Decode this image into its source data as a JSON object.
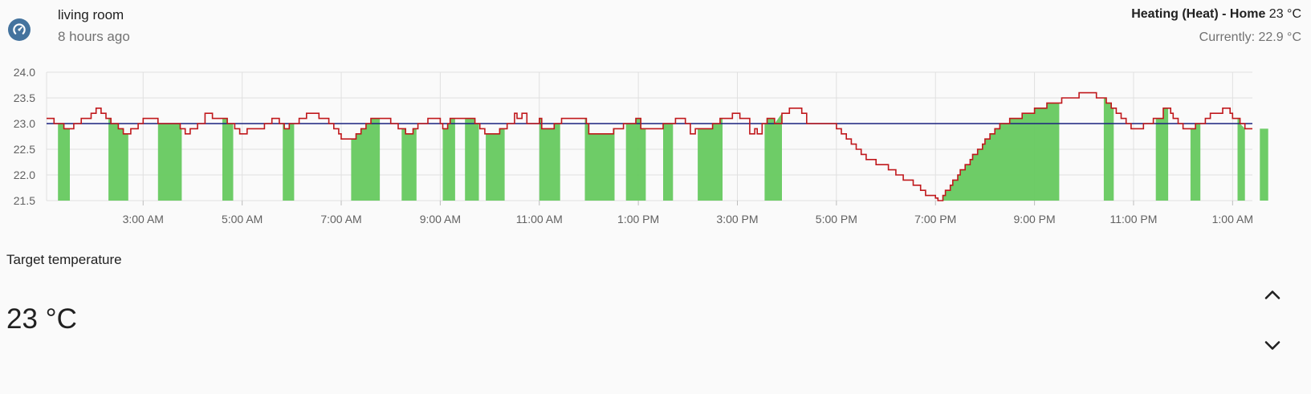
{
  "entity": {
    "icon": "thermostat-icon",
    "name": "living room",
    "last_changed": "8 hours ago"
  },
  "state": {
    "mode": "Heating (Heat) - Home",
    "target": "23 °C",
    "current": "Currently: 22.9 °C"
  },
  "colors": {
    "accent": "#44739e",
    "current_temp": "#c0181c",
    "target_temp": "#1a237e",
    "heating": "#66c95f"
  },
  "chart_data": {
    "type": "line",
    "y_ticks": [
      "24.0",
      "23.5",
      "23.0",
      "22.5",
      "22.0",
      "21.5"
    ],
    "x_ticks": [
      "3:00 AM",
      "5:00 AM",
      "7:00 AM",
      "9:00 AM",
      "11:00 AM",
      "1:00 PM",
      "3:00 PM",
      "5:00 PM",
      "7:00 PM",
      "9:00 PM",
      "11:00 PM",
      "1:00 AM"
    ],
    "ylim": [
      21.5,
      24.0
    ],
    "xlim": [
      1.05,
      25.4
    ],
    "grid": true,
    "series": [
      {
        "key": "target",
        "values": [
          [
            1.05,
            23.0
          ],
          [
            25.4,
            23.0
          ]
        ]
      },
      {
        "key": "current",
        "values": [
          [
            1.05,
            23.1
          ],
          [
            1.2,
            23.0
          ],
          [
            1.4,
            22.9
          ],
          [
            1.6,
            23.0
          ],
          [
            1.75,
            23.1
          ],
          [
            1.95,
            23.2
          ],
          [
            2.05,
            23.3
          ],
          [
            2.15,
            23.2
          ],
          [
            2.25,
            23.1
          ],
          [
            2.35,
            23.0
          ],
          [
            2.5,
            22.9
          ],
          [
            2.6,
            22.8
          ],
          [
            2.75,
            22.9
          ],
          [
            2.9,
            23.0
          ],
          [
            3.0,
            23.1
          ],
          [
            3.3,
            23.0
          ],
          [
            3.55,
            23.0
          ],
          [
            3.75,
            22.9
          ],
          [
            3.85,
            22.8
          ],
          [
            3.95,
            22.9
          ],
          [
            4.1,
            23.0
          ],
          [
            4.25,
            23.2
          ],
          [
            4.4,
            23.1
          ],
          [
            4.7,
            23.0
          ],
          [
            4.85,
            22.9
          ],
          [
            4.95,
            22.8
          ],
          [
            5.1,
            22.9
          ],
          [
            5.45,
            23.0
          ],
          [
            5.6,
            23.1
          ],
          [
            5.75,
            23.0
          ],
          [
            5.85,
            22.9
          ],
          [
            5.95,
            23.0
          ],
          [
            6.15,
            23.1
          ],
          [
            6.3,
            23.2
          ],
          [
            6.55,
            23.1
          ],
          [
            6.75,
            23.0
          ],
          [
            6.85,
            22.9
          ],
          [
            6.95,
            22.8
          ],
          [
            7.0,
            22.7
          ],
          [
            7.3,
            22.8
          ],
          [
            7.4,
            22.9
          ],
          [
            7.5,
            23.0
          ],
          [
            7.6,
            23.1
          ],
          [
            8.0,
            23.0
          ],
          [
            8.15,
            22.9
          ],
          [
            8.3,
            22.8
          ],
          [
            8.45,
            22.9
          ],
          [
            8.55,
            23.0
          ],
          [
            8.75,
            23.1
          ],
          [
            9.0,
            23.0
          ],
          [
            9.05,
            22.9
          ],
          [
            9.15,
            23.0
          ],
          [
            9.2,
            23.1
          ],
          [
            9.7,
            23.0
          ],
          [
            9.8,
            22.9
          ],
          [
            9.9,
            22.8
          ],
          [
            10.2,
            22.9
          ],
          [
            10.35,
            23.0
          ],
          [
            10.5,
            23.2
          ],
          [
            10.55,
            23.1
          ],
          [
            10.65,
            23.2
          ],
          [
            10.75,
            23.0
          ],
          [
            11.0,
            23.1
          ],
          [
            11.05,
            22.9
          ],
          [
            11.3,
            23.0
          ],
          [
            11.45,
            23.1
          ],
          [
            11.95,
            23.0
          ],
          [
            12.0,
            22.8
          ],
          [
            12.5,
            22.9
          ],
          [
            12.7,
            23.0
          ],
          [
            12.95,
            23.1
          ],
          [
            13.05,
            22.9
          ],
          [
            13.25,
            22.9
          ],
          [
            13.5,
            23.0
          ],
          [
            13.75,
            23.1
          ],
          [
            13.95,
            23.0
          ],
          [
            14.05,
            22.8
          ],
          [
            14.15,
            22.9
          ],
          [
            14.5,
            23.0
          ],
          [
            14.65,
            23.1
          ],
          [
            14.9,
            23.2
          ],
          [
            15.05,
            23.1
          ],
          [
            15.25,
            22.8
          ],
          [
            15.35,
            22.9
          ],
          [
            15.4,
            22.8
          ],
          [
            15.5,
            23.0
          ],
          [
            15.6,
            23.1
          ],
          [
            15.75,
            23.0
          ],
          [
            15.9,
            23.2
          ],
          [
            16.05,
            23.3
          ],
          [
            16.3,
            23.2
          ],
          [
            16.4,
            23.0
          ],
          [
            17.0,
            22.9
          ],
          [
            17.1,
            22.8
          ],
          [
            17.2,
            22.7
          ],
          [
            17.3,
            22.6
          ],
          [
            17.4,
            22.5
          ],
          [
            17.5,
            22.4
          ],
          [
            17.6,
            22.3
          ],
          [
            17.8,
            22.2
          ],
          [
            18.05,
            22.1
          ],
          [
            18.2,
            22.0
          ],
          [
            18.35,
            21.9
          ],
          [
            18.55,
            21.8
          ],
          [
            18.7,
            21.7
          ],
          [
            18.8,
            21.6
          ],
          [
            19.0,
            21.55
          ],
          [
            19.05,
            21.5
          ],
          [
            19.15,
            21.6
          ],
          [
            19.2,
            21.7
          ],
          [
            19.3,
            21.8
          ],
          [
            19.35,
            21.9
          ],
          [
            19.45,
            22.0
          ],
          [
            19.5,
            22.1
          ],
          [
            19.6,
            22.2
          ],
          [
            19.7,
            22.3
          ],
          [
            19.75,
            22.4
          ],
          [
            19.85,
            22.5
          ],
          [
            19.95,
            22.6
          ],
          [
            20.0,
            22.7
          ],
          [
            20.1,
            22.8
          ],
          [
            20.2,
            22.9
          ],
          [
            20.3,
            23.0
          ],
          [
            20.5,
            23.1
          ],
          [
            20.75,
            23.2
          ],
          [
            21.0,
            23.3
          ],
          [
            21.25,
            23.4
          ],
          [
            21.55,
            23.5
          ],
          [
            21.9,
            23.6
          ],
          [
            22.25,
            23.5
          ],
          [
            22.45,
            23.4
          ],
          [
            22.55,
            23.3
          ],
          [
            22.65,
            23.2
          ],
          [
            22.75,
            23.1
          ],
          [
            22.85,
            23.0
          ],
          [
            22.95,
            22.9
          ],
          [
            23.2,
            23.0
          ],
          [
            23.4,
            23.1
          ],
          [
            23.6,
            23.3
          ],
          [
            23.75,
            23.2
          ],
          [
            23.8,
            23.1
          ],
          [
            23.9,
            23.0
          ],
          [
            24.0,
            22.9
          ],
          [
            24.25,
            23.0
          ],
          [
            24.45,
            23.1
          ],
          [
            24.55,
            23.2
          ],
          [
            24.8,
            23.3
          ],
          [
            24.95,
            23.2
          ],
          [
            25.0,
            23.1
          ],
          [
            25.15,
            23.0
          ],
          [
            25.25,
            22.9
          ]
        ]
      }
    ],
    "heating_periods": [
      [
        1.28,
        1.52
      ],
      [
        2.3,
        2.7
      ],
      [
        3.3,
        3.78
      ],
      [
        4.6,
        4.82
      ],
      [
        5.82,
        6.05
      ],
      [
        7.2,
        7.78
      ],
      [
        8.22,
        8.52
      ],
      [
        9.05,
        9.3
      ],
      [
        9.5,
        9.78
      ],
      [
        9.92,
        10.3
      ],
      [
        11.0,
        11.42
      ],
      [
        11.92,
        12.52
      ],
      [
        12.75,
        13.15
      ],
      [
        13.5,
        13.7
      ],
      [
        14.2,
        14.7
      ],
      [
        15.55,
        15.9
      ],
      [
        19.15,
        21.5
      ],
      [
        22.4,
        22.6
      ],
      [
        23.45,
        23.7
      ],
      [
        24.15,
        24.35
      ],
      [
        25.1,
        25.25
      ],
      [
        25.55,
        25.72
      ]
    ]
  },
  "target_section": {
    "label": "Target temperature",
    "value": "23 °C"
  }
}
